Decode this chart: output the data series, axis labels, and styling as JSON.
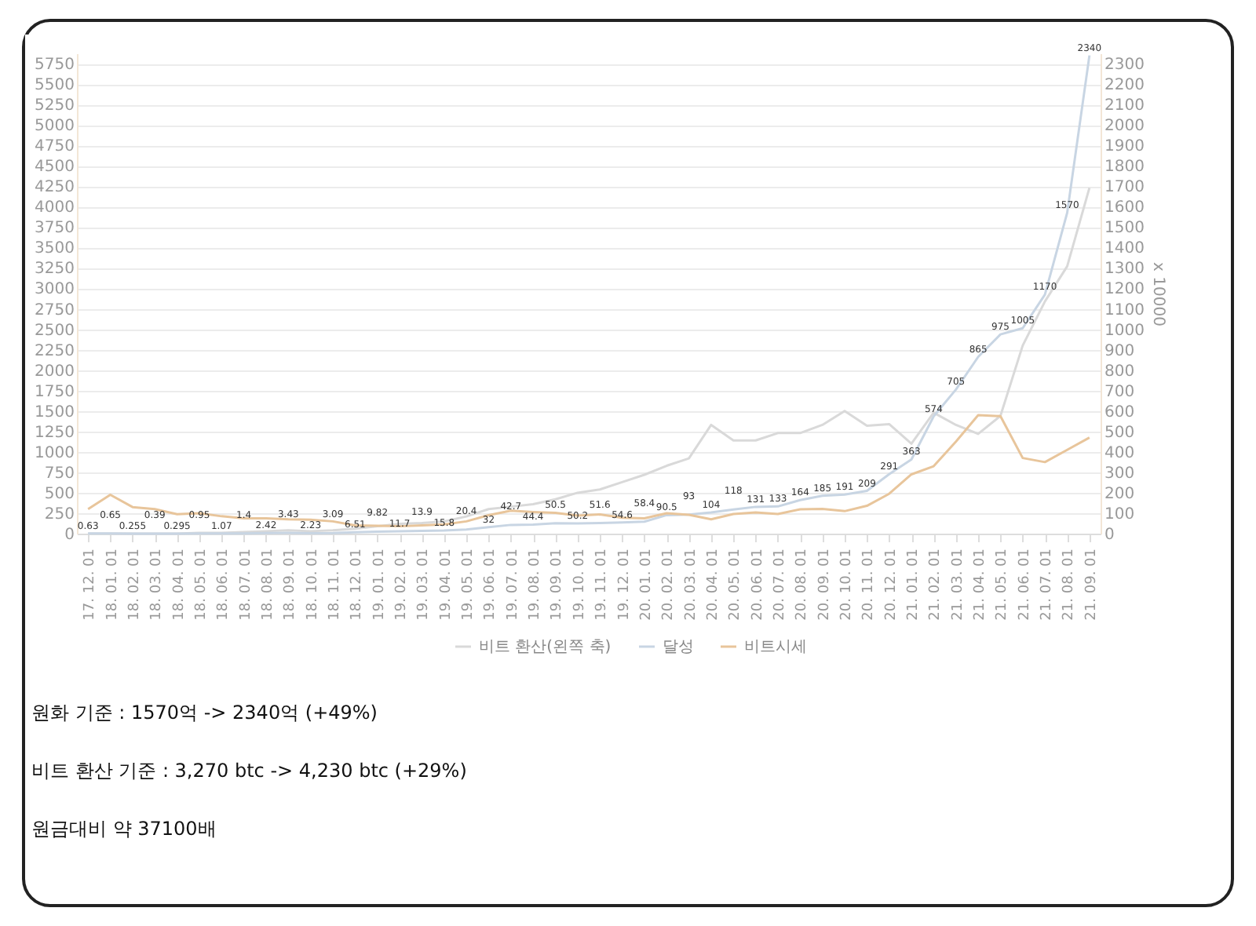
{
  "chart_data": {
    "type": "line",
    "categories": [
      "17. 12. 01",
      "18. 01. 01",
      "18. 02. 01",
      "18. 03. 01",
      "18. 04. 01",
      "18. 05. 01",
      "18. 06. 01",
      "18. 07. 01",
      "18. 08. 01",
      "18. 09. 01",
      "18. 10. 01",
      "18. 11. 01",
      "18. 12. 01",
      "19. 01. 01",
      "19. 02. 01",
      "19. 03. 01",
      "19. 04. 01",
      "19. 05. 01",
      "19. 06. 01",
      "19. 07. 01",
      "19. 08. 01",
      "19. 09. 01",
      "19. 10. 01",
      "19. 11. 01",
      "19. 12. 01",
      "20. 01. 01",
      "20. 02. 01",
      "20. 03. 01",
      "20. 04. 01",
      "20. 05. 01",
      "20. 06. 01",
      "20. 07. 01",
      "20. 08. 01",
      "20. 09. 01",
      "20. 10. 01",
      "20. 11. 01",
      "20. 12. 01",
      "21. 01. 01",
      "21. 02. 01",
      "21. 03. 01",
      "21. 04. 01",
      "21. 05. 01",
      "21. 06. 01",
      "21. 07. 01",
      "21. 08. 01",
      "21. 09. 01"
    ],
    "series": [
      {
        "name": "비트 환산(왼쪽 축)",
        "color": "#d9d9d9",
        "values": [
          0,
          0,
          0,
          0,
          0,
          10,
          10,
          20,
          30,
          40,
          30,
          40,
          60,
          90,
          120,
          130,
          150,
          210,
          300,
          330,
          360,
          420,
          500,
          540,
          630,
          720,
          830,
          920,
          1330,
          1140,
          1140,
          1230,
          1230,
          1330,
          1500,
          1320,
          1340,
          1100,
          1480,
          1330,
          1220,
          1440,
          2300,
          2840,
          3270,
          4230
        ]
      },
      {
        "name": "달성",
        "color": "#c8d5e3",
        "axis": "y2",
        "values": [
          0.63,
          0.65,
          0.255,
          0.39,
          0.295,
          0.95,
          1.07,
          1.4,
          2.42,
          3.43,
          2.23,
          3.09,
          6.51,
          9.82,
          11.7,
          13.9,
          15.8,
          20.4,
          32,
          42.7,
          44.4,
          50.5,
          50.2,
          51.6,
          54.6,
          58.4,
          90.5,
          93,
          104,
          118,
          131,
          133,
          164,
          185,
          191,
          209,
          291,
          363,
          574,
          705,
          865,
          975,
          1005,
          1170,
          1570,
          2340
        ],
        "value_labels": [
          "0.63",
          "0.65",
          "0.255",
          "0.39",
          "0.295",
          "0.95",
          "1.07",
          "1.4",
          "2.42",
          "3.43",
          "2.23",
          "3.09",
          "6.51",
          "9.82",
          "11.7",
          "13.9",
          "15.8",
          "20.4",
          "32",
          "42.7",
          "44.4",
          "50.5",
          "50.2",
          "51.6",
          "54.6",
          "58.4",
          "90.5",
          "93",
          "104",
          "118",
          "131",
          "133",
          "164",
          "185",
          "191",
          "209",
          "291",
          "363",
          "574",
          "705",
          "865",
          "975",
          "1005",
          "1170",
          "1570",
          "2340"
        ]
      },
      {
        "name": "비트시세",
        "color": "#e8c59b",
        "axis": "y2",
        "values": [
          120,
          190,
          130,
          120,
          95,
          100,
          85,
          75,
          75,
          70,
          68,
          60,
          40,
          38,
          36,
          40,
          45,
          60,
          90,
          112,
          106,
          102,
          88,
          94,
          78,
          75,
          100,
          92,
          70,
          96,
          104,
          96,
          119,
          121,
          110,
          136,
          195,
          290,
          330,
          450,
          580,
          575,
          370,
          350,
          410,
          470
        ]
      }
    ],
    "ylim": [
      0,
      5875
    ],
    "yticks": [
      0,
      250,
      500,
      750,
      1000,
      1250,
      1500,
      1750,
      2000,
      2250,
      2500,
      2750,
      3000,
      3250,
      3500,
      3750,
      4000,
      4250,
      4500,
      4750,
      5000,
      5250,
      5500,
      5750
    ],
    "y2lim": [
      0,
      2350
    ],
    "y2ticks": [
      0,
      100,
      200,
      300,
      400,
      500,
      600,
      700,
      800,
      900,
      1000,
      1100,
      1200,
      1300,
      1400,
      1500,
      1600,
      1700,
      1800,
      1900,
      2000,
      2100,
      2200,
      2300
    ],
    "y2label": "x 10000",
    "grid": "y",
    "legend": "bottom",
    "annotations": [
      "원화 기준 : 1570억 -> 2340억 (+49%)",
      "비트 환산 기준 : 3,270 btc -> 4,230 btc (+29%)",
      "원금대비 약 37100배"
    ]
  }
}
